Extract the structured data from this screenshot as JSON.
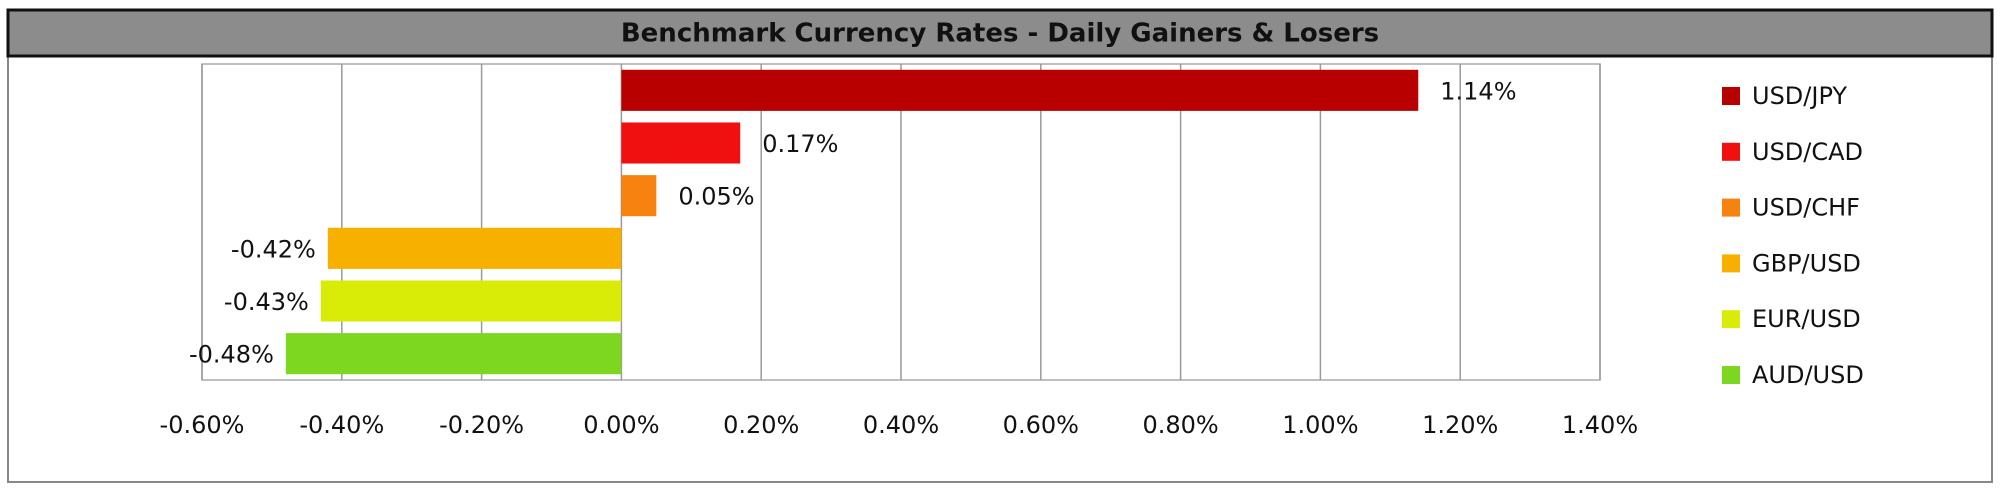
{
  "chart_data": {
    "type": "bar",
    "orientation": "horizontal",
    "title": "Benchmark Currency Rates - Daily Gainers & Losers",
    "categories": [
      "USD/JPY",
      "USD/CAD",
      "USD/CHF",
      "GBP/USD",
      "EUR/USD",
      "AUD/USD"
    ],
    "values": [
      1.14,
      0.17,
      0.05,
      -0.42,
      -0.43,
      -0.48
    ],
    "value_labels": [
      "1.14%",
      "0.17%",
      "0.05%",
      "-0.42%",
      "-0.43%",
      "-0.48%"
    ],
    "colors": [
      "#b80000",
      "#f01010",
      "#f7820f",
      "#f8b000",
      "#d9ec08",
      "#7dd61f"
    ],
    "xlim": [
      -0.6,
      1.4
    ],
    "xticks": [
      {
        "value": -0.6,
        "label": "-0.60%"
      },
      {
        "value": -0.4,
        "label": "-0.40%"
      },
      {
        "value": -0.2,
        "label": "-0.20%"
      },
      {
        "value": 0,
        "label": "0.00%"
      },
      {
        "value": 0.2,
        "label": "0.20%"
      },
      {
        "value": 0.4,
        "label": "0.40%"
      },
      {
        "value": 0.6,
        "label": "0.60%"
      },
      {
        "value": 0.8,
        "label": "0.80%"
      },
      {
        "value": 1.0,
        "label": "1.00%"
      },
      {
        "value": 1.2,
        "label": "1.20%"
      },
      {
        "value": 1.4,
        "label": "1.40%"
      }
    ],
    "grid": true,
    "legend": "right"
  }
}
